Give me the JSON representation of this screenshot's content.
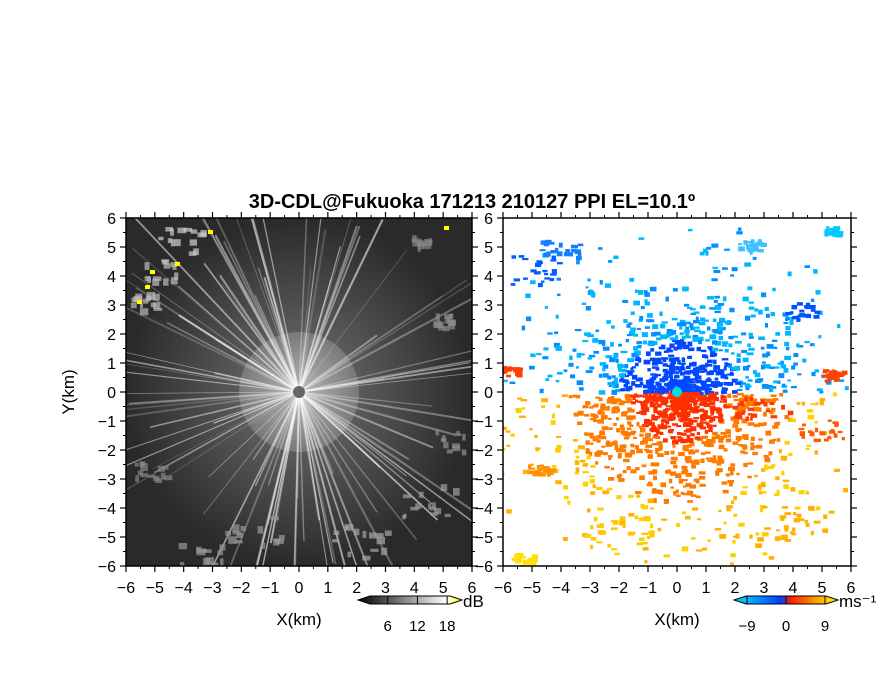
{
  "title": "3D-CDL@Fukuoka 171213 210127 PPI EL=10.1º",
  "chart_data": [
    {
      "type": "heatmap",
      "panel": "reflectivity",
      "xlabel": "X(km)",
      "ylabel": "Y(km)",
      "xlim": [
        -6,
        6
      ],
      "ylim": [
        -6,
        6
      ],
      "xticks": [
        "−6",
        "−5",
        "−4",
        "−3",
        "−2",
        "−1",
        "0",
        "1",
        "2",
        "3",
        "4",
        "5",
        "6"
      ],
      "yticks": [
        "6",
        "5",
        "4",
        "3",
        "2",
        "1",
        "0",
        "−1",
        "−2",
        "−3",
        "−4",
        "−5",
        "−6"
      ],
      "colorbar": {
        "unit": "dB",
        "ticks": [
          "6",
          "12",
          "18"
        ],
        "tick_values": [
          6,
          12,
          18
        ],
        "range": [
          0,
          21
        ],
        "colors": [
          "#000000",
          "#ffffff",
          "#ffff00"
        ]
      }
    },
    {
      "type": "heatmap",
      "panel": "doppler velocity",
      "xlabel": "X(km)",
      "ylabel": "",
      "xlim": [
        -6,
        6
      ],
      "ylim": [
        -6,
        6
      ],
      "xticks": [
        "−6",
        "−5",
        "−4",
        "−3",
        "−2",
        "−1",
        "0",
        "1",
        "2",
        "3",
        "4",
        "5",
        "6"
      ],
      "yticks": [
        "6",
        "5",
        "4",
        "3",
        "2",
        "1",
        "0",
        "−1",
        "−2",
        "−3",
        "−4",
        "−5",
        "−6"
      ],
      "colorbar": {
        "unit": "ms⁻¹",
        "ticks": [
          "−9",
          "0",
          "9"
        ],
        "tick_values": [
          -9,
          0,
          9
        ],
        "range": [
          -12,
          12
        ],
        "colors": [
          "#00e0ff",
          "#0040ff",
          "#ff2000",
          "#ffa000",
          "#ffff00"
        ]
      }
    }
  ]
}
